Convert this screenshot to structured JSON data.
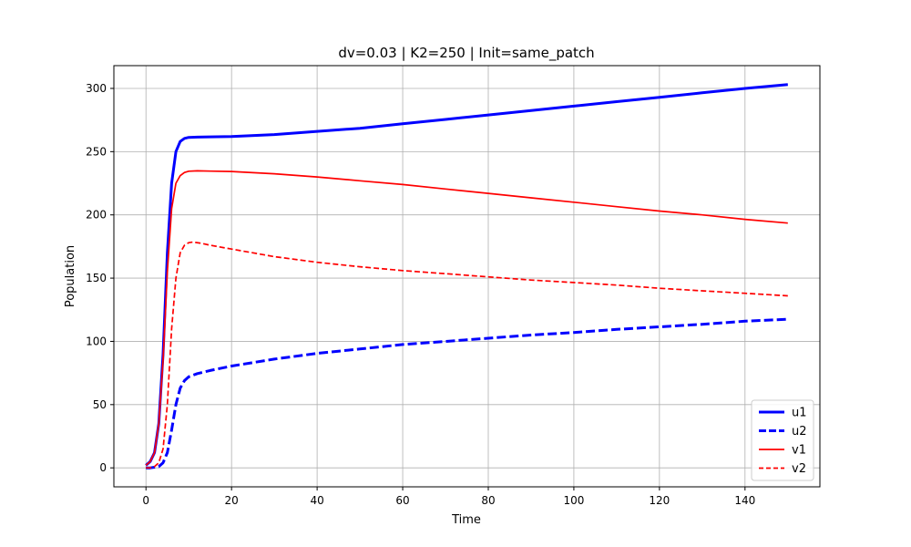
{
  "chart_data": {
    "type": "line",
    "title": "dv=0.03 | K2=250 | Init=same_patch",
    "xlabel": "Time",
    "ylabel": "Population",
    "xlim": [
      -7.5,
      157.5
    ],
    "ylim": [
      -15,
      318
    ],
    "xticks": [
      0,
      20,
      40,
      60,
      80,
      100,
      120,
      140
    ],
    "yticks": [
      0,
      50,
      100,
      150,
      200,
      250,
      300
    ],
    "grid": true,
    "legend_position": "lower-right",
    "series": [
      {
        "name": "u1",
        "color": "#0000ff",
        "style": "solid",
        "width": 3,
        "points": [
          [
            0,
            2
          ],
          [
            1,
            5
          ],
          [
            2,
            12
          ],
          [
            3,
            35
          ],
          [
            4,
            90
          ],
          [
            5,
            170
          ],
          [
            6,
            225
          ],
          [
            7,
            250
          ],
          [
            8,
            258
          ],
          [
            9,
            260.5
          ],
          [
            10,
            261.3
          ],
          [
            12,
            261.5
          ],
          [
            15,
            261.7
          ],
          [
            20,
            262
          ],
          [
            30,
            263.5
          ],
          [
            40,
            266
          ],
          [
            50,
            268.5
          ],
          [
            60,
            272
          ],
          [
            70,
            275.5
          ],
          [
            80,
            279
          ],
          [
            90,
            282.5
          ],
          [
            100,
            286
          ],
          [
            110,
            289.5
          ],
          [
            120,
            293
          ],
          [
            130,
            296.5
          ],
          [
            140,
            300
          ],
          [
            150,
            303
          ]
        ]
      },
      {
        "name": "u2",
        "color": "#0000ff",
        "style": "dashed",
        "width": 3,
        "points": [
          [
            0,
            0
          ],
          [
            1,
            0
          ],
          [
            2,
            0.5
          ],
          [
            3,
            1
          ],
          [
            4,
            4
          ],
          [
            5,
            12
          ],
          [
            6,
            30
          ],
          [
            7,
            50
          ],
          [
            8,
            63
          ],
          [
            9,
            69
          ],
          [
            10,
            72
          ],
          [
            12,
            74.5
          ],
          [
            15,
            77
          ],
          [
            20,
            80.5
          ],
          [
            30,
            86
          ],
          [
            40,
            90.5
          ],
          [
            50,
            94
          ],
          [
            60,
            97.5
          ],
          [
            70,
            100
          ],
          [
            80,
            102.5
          ],
          [
            90,
            105
          ],
          [
            100,
            107
          ],
          [
            110,
            109.5
          ],
          [
            120,
            111.5
          ],
          [
            130,
            113.5
          ],
          [
            140,
            116
          ],
          [
            150,
            117.5
          ]
        ]
      },
      {
        "name": "v1",
        "color": "#ff0000",
        "style": "solid",
        "width": 1.7,
        "points": [
          [
            0,
            2
          ],
          [
            1,
            5
          ],
          [
            2,
            12
          ],
          [
            3,
            35
          ],
          [
            4,
            85
          ],
          [
            5,
            155
          ],
          [
            6,
            205
          ],
          [
            7,
            225
          ],
          [
            8,
            231
          ],
          [
            9,
            233.5
          ],
          [
            10,
            234.5
          ],
          [
            12,
            234.8
          ],
          [
            15,
            234.6
          ],
          [
            20,
            234.3
          ],
          [
            30,
            232.5
          ],
          [
            40,
            230
          ],
          [
            50,
            227
          ],
          [
            60,
            224
          ],
          [
            70,
            220.5
          ],
          [
            80,
            217
          ],
          [
            90,
            213.5
          ],
          [
            100,
            210
          ],
          [
            110,
            206.5
          ],
          [
            120,
            203
          ],
          [
            130,
            200
          ],
          [
            140,
            196.5
          ],
          [
            150,
            193.5
          ]
        ]
      },
      {
        "name": "v2",
        "color": "#ff0000",
        "style": "dashed",
        "width": 1.7,
        "points": [
          [
            0,
            0
          ],
          [
            1,
            0
          ],
          [
            2,
            1
          ],
          [
            3,
            4
          ],
          [
            4,
            15
          ],
          [
            5,
            50
          ],
          [
            6,
            110
          ],
          [
            7,
            150
          ],
          [
            8,
            170
          ],
          [
            9,
            176
          ],
          [
            10,
            178
          ],
          [
            11,
            178.5
          ],
          [
            13,
            177.5
          ],
          [
            15,
            176
          ],
          [
            20,
            173
          ],
          [
            30,
            167
          ],
          [
            40,
            162.5
          ],
          [
            50,
            159
          ],
          [
            60,
            156
          ],
          [
            70,
            153.5
          ],
          [
            80,
            151
          ],
          [
            90,
            148.5
          ],
          [
            100,
            146.5
          ],
          [
            110,
            144.5
          ],
          [
            120,
            142
          ],
          [
            130,
            140
          ],
          [
            140,
            138
          ],
          [
            150,
            136
          ]
        ]
      }
    ]
  }
}
